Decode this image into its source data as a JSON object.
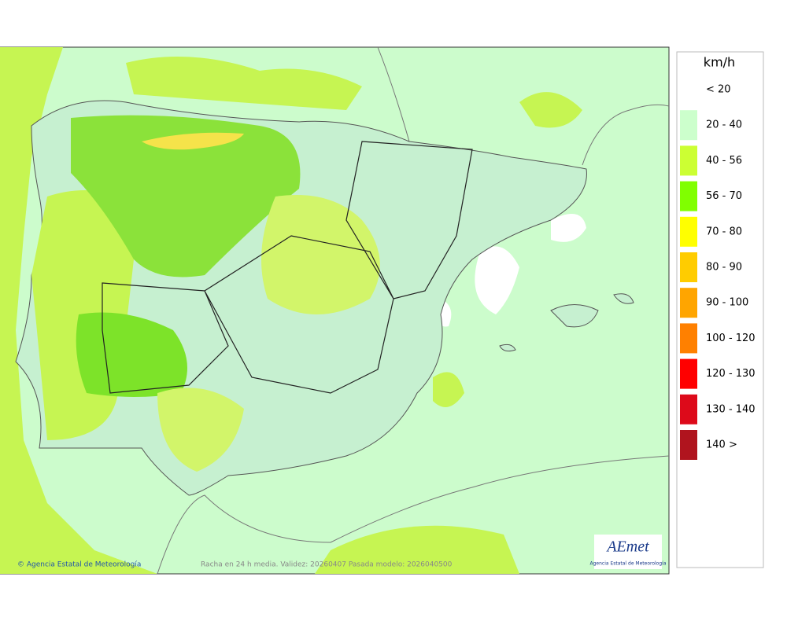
{
  "map": {
    "caption": "Racha en 24 h media. Validez: 20260407 Pasada modelo: 2026040500",
    "credit": "© Agencia Estatal de Meteorología"
  },
  "legend": {
    "title": "km/h",
    "items": [
      {
        "label": "< 20",
        "color": "#ffffff"
      },
      {
        "label": "20 - 40",
        "color": "#ccffcc"
      },
      {
        "label": "40 - 56",
        "color": "#ccff33"
      },
      {
        "label": "56 - 70",
        "color": "#80ff00"
      },
      {
        "label": "70 - 80",
        "color": "#ffff00"
      },
      {
        "label": "80 - 90",
        "color": "#ffcc00"
      },
      {
        "label": "90 - 100",
        "color": "#ffa500"
      },
      {
        "label": "100 - 120",
        "color": "#ff8000"
      },
      {
        "label": "120 - 130",
        "color": "#ff0000"
      },
      {
        "label": "130 - 140",
        "color": "#dd0a1a"
      },
      {
        "label": "140 >",
        "color": "#b0141e"
      }
    ]
  },
  "logo": {
    "name": "AEmet",
    "subtitle": "Agencia Estatal de Meteorología"
  }
}
